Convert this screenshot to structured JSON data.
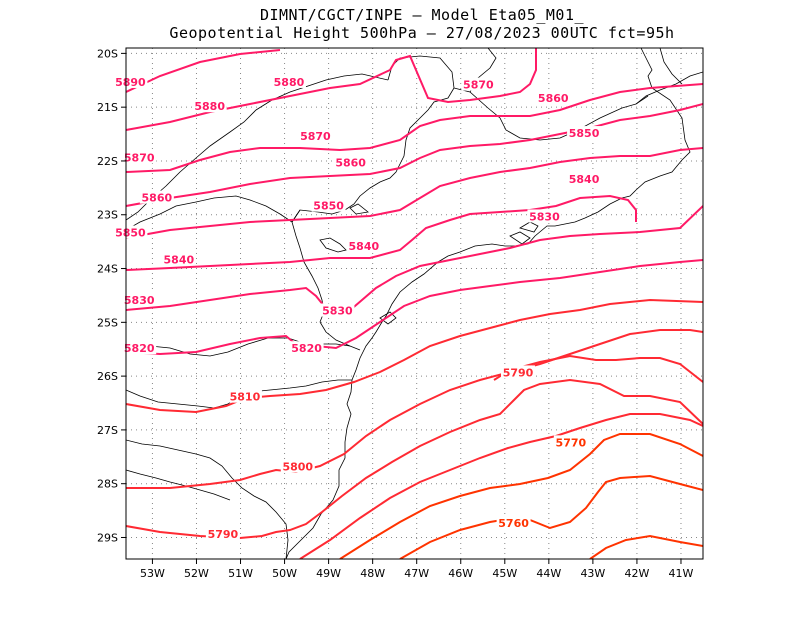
{
  "title": {
    "line1": "DIMNT/CGCT/INPE –  Model Eta05_M01_",
    "line2": "Geopotential Height 500hPa –  27/08/2023 00UTC fct=95h"
  },
  "map": {
    "lon_range": [
      -53.6,
      -40.5
    ],
    "lat_range": [
      -29.4,
      -19.9
    ],
    "x_tick_labels": [
      "53W",
      "52W",
      "51W",
      "50W",
      "49W",
      "48W",
      "47W",
      "46W",
      "45W",
      "44W",
      "43W",
      "42W",
      "41W"
    ],
    "x_tick_values": [
      -53,
      -52,
      -51,
      -50,
      -49,
      -48,
      -47,
      -46,
      -45,
      -44,
      -43,
      -42,
      -41
    ],
    "y_tick_labels": [
      "20S",
      "21S",
      "22S",
      "23S",
      "24S",
      "25S",
      "26S",
      "27S",
      "28S",
      "29S"
    ],
    "y_tick_values": [
      -20,
      -21,
      -22,
      -23,
      -24,
      -25,
      -26,
      -27,
      -28,
      -29
    ],
    "grid": "dotted",
    "coastline_color": "#000000"
  },
  "contours": {
    "variable": "geopotential height",
    "units": "gpm",
    "labels": [
      {
        "text": "5890",
        "lon": -53.5,
        "lat": -20.55,
        "color": "#ff1a66"
      },
      {
        "text": "5880",
        "lon": -49.9,
        "lat": -20.55,
        "color": "#ff1a66"
      },
      {
        "text": "5880",
        "lon": -51.7,
        "lat": -21.0,
        "color": "#ff1a66"
      },
      {
        "text": "5870",
        "lon": -45.6,
        "lat": -20.6,
        "color": "#ff1a66"
      },
      {
        "text": "5860",
        "lon": -43.9,
        "lat": -20.85,
        "color": "#ff1a66"
      },
      {
        "text": "5870",
        "lon": -49.3,
        "lat": -21.55,
        "color": "#ff1a66"
      },
      {
        "text": "5850",
        "lon": -43.2,
        "lat": -21.5,
        "color": "#ff1a66"
      },
      {
        "text": "5870",
        "lon": -53.3,
        "lat": -21.95,
        "color": "#ff1a66"
      },
      {
        "text": "5860",
        "lon": -48.5,
        "lat": -22.05,
        "color": "#ff1a66"
      },
      {
        "text": "5840",
        "lon": -43.2,
        "lat": -22.35,
        "color": "#ff1a66"
      },
      {
        "text": "5860",
        "lon": -52.9,
        "lat": -22.7,
        "color": "#ff1a66"
      },
      {
        "text": "5850",
        "lon": -49.0,
        "lat": -22.85,
        "color": "#ff1a66"
      },
      {
        "text": "5830",
        "lon": -44.1,
        "lat": -23.05,
        "color": "#ff1a66"
      },
      {
        "text": "5850",
        "lon": -53.5,
        "lat": -23.35,
        "color": "#ff1a66"
      },
      {
        "text": "5840",
        "lon": -48.2,
        "lat": -23.6,
        "color": "#ff1a66"
      },
      {
        "text": "5840",
        "lon": -52.4,
        "lat": -23.85,
        "color": "#ff1a66"
      },
      {
        "text": "5830",
        "lon": -53.3,
        "lat": -24.6,
        "color": "#ff1a66"
      },
      {
        "text": "5830",
        "lon": -48.8,
        "lat": -24.8,
        "color": "#ff1a66"
      },
      {
        "text": "5820",
        "lon": -53.3,
        "lat": -25.5,
        "color": "#ff1a66"
      },
      {
        "text": "5820",
        "lon": -49.5,
        "lat": -25.5,
        "color": "#ff1a66"
      },
      {
        "text": "5810",
        "lon": -50.9,
        "lat": -26.4,
        "color": "#ff2a33"
      },
      {
        "text": "5790",
        "lon": -44.7,
        "lat": -25.95,
        "color": "#ff2a33"
      },
      {
        "text": "5770",
        "lon": -43.5,
        "lat": -27.25,
        "color": "#ff3300"
      },
      {
        "text": "5800",
        "lon": -49.7,
        "lat": -27.7,
        "color": "#ff2a33"
      },
      {
        "text": "5790",
        "lon": -51.4,
        "lat": -28.95,
        "color": "#ff2a33"
      },
      {
        "text": "5760",
        "lon": -44.8,
        "lat": -28.75,
        "color": "#ff3300"
      }
    ]
  }
}
